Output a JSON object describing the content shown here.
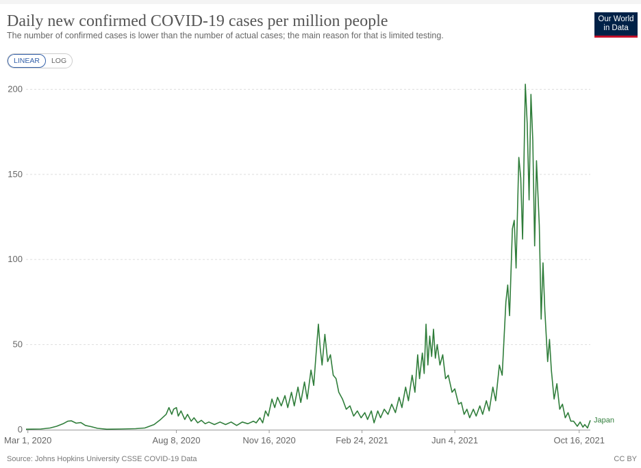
{
  "header": {
    "title": "Daily new confirmed COVID-19 cases per million people",
    "subtitle": "The number of confirmed cases is lower than the number of actual cases; the main reason for that is limited testing.",
    "logo_line1": "Our World",
    "logo_line2": "in Data"
  },
  "controls": {
    "linear_label": "LINEAR",
    "log_label": "LOG",
    "selected": "LINEAR"
  },
  "footer": {
    "source": "Source: Johns Hopkins University CSSE COVID-19 Data",
    "license": "CC BY"
  },
  "colors": {
    "series": "#2f7d3a",
    "grid": "#dddddd",
    "logo_bg": "#002147",
    "logo_accent": "#c4102a",
    "toggle_active": "#3360a9"
  },
  "chart_data": {
    "type": "line",
    "title": "Daily new confirmed COVID-19 cases per million people",
    "xlabel": "",
    "ylabel": "",
    "ylim": [
      0,
      205
    ],
    "yticks": [
      0,
      50,
      100,
      150,
      200
    ],
    "xlim": [
      "2020-02-28",
      "2021-10-28"
    ],
    "xticks": [
      {
        "date": "2020-03-01",
        "label": "Mar 1, 2020"
      },
      {
        "date": "2020-08-08",
        "label": "Aug 8, 2020"
      },
      {
        "date": "2020-11-16",
        "label": "Nov 16, 2020"
      },
      {
        "date": "2021-02-24",
        "label": "Feb 24, 2021"
      },
      {
        "date": "2021-06-04",
        "label": "Jun 4, 2021"
      },
      {
        "date": "2021-10-16",
        "label": "Oct 16, 2021"
      }
    ],
    "grid": true,
    "legend": "end-of-line label",
    "series": [
      {
        "name": "Japan",
        "points": [
          [
            "2020-02-28",
            0.3
          ],
          [
            "2020-03-15",
            0.4
          ],
          [
            "2020-03-25",
            1.0
          ],
          [
            "2020-04-01",
            2.0
          ],
          [
            "2020-04-08",
            3.5
          ],
          [
            "2020-04-13",
            5.0
          ],
          [
            "2020-04-17",
            5.2
          ],
          [
            "2020-04-22",
            3.8
          ],
          [
            "2020-04-27",
            4.2
          ],
          [
            "2020-05-02",
            2.5
          ],
          [
            "2020-05-08",
            1.8
          ],
          [
            "2020-05-15",
            0.8
          ],
          [
            "2020-05-25",
            0.3
          ],
          [
            "2020-06-10",
            0.4
          ],
          [
            "2020-06-25",
            0.6
          ],
          [
            "2020-07-05",
            1.0
          ],
          [
            "2020-07-15",
            3.0
          ],
          [
            "2020-07-22",
            6.0
          ],
          [
            "2020-07-28",
            9.0
          ],
          [
            "2020-07-31",
            13.0
          ],
          [
            "2020-08-03",
            9.0
          ],
          [
            "2020-08-05",
            12.0
          ],
          [
            "2020-08-08",
            13.0
          ],
          [
            "2020-08-10",
            8.0
          ],
          [
            "2020-08-13",
            11.0
          ],
          [
            "2020-08-17",
            6.0
          ],
          [
            "2020-08-20",
            9.0
          ],
          [
            "2020-08-24",
            5.0
          ],
          [
            "2020-08-27",
            7.0
          ],
          [
            "2020-08-31",
            4.0
          ],
          [
            "2020-09-04",
            5.5
          ],
          [
            "2020-09-08",
            3.5
          ],
          [
            "2020-09-12",
            4.5
          ],
          [
            "2020-09-18",
            3.0
          ],
          [
            "2020-09-24",
            4.5
          ],
          [
            "2020-09-30",
            3.0
          ],
          [
            "2020-10-06",
            4.5
          ],
          [
            "2020-10-12",
            2.5
          ],
          [
            "2020-10-18",
            4.5
          ],
          [
            "2020-10-24",
            3.5
          ],
          [
            "2020-10-30",
            5.0
          ],
          [
            "2020-11-02",
            4.0
          ],
          [
            "2020-11-06",
            7.0
          ],
          [
            "2020-11-09",
            4.0
          ],
          [
            "2020-11-12",
            11.0
          ],
          [
            "2020-11-15",
            8.0
          ],
          [
            "2020-11-19",
            18.0
          ],
          [
            "2020-11-22",
            13.0
          ],
          [
            "2020-11-25",
            19.0
          ],
          [
            "2020-11-29",
            14.0
          ],
          [
            "2020-12-03",
            20.0
          ],
          [
            "2020-12-06",
            13.0
          ],
          [
            "2020-12-10",
            22.0
          ],
          [
            "2020-12-13",
            14.0
          ],
          [
            "2020-12-17",
            25.0
          ],
          [
            "2020-12-20",
            16.0
          ],
          [
            "2020-12-24",
            28.0
          ],
          [
            "2020-12-27",
            18.0
          ],
          [
            "2020-12-31",
            35.0
          ],
          [
            "2021-01-03",
            26.0
          ],
          [
            "2021-01-06",
            48.0
          ],
          [
            "2021-01-08",
            62.0
          ],
          [
            "2021-01-10",
            48.0
          ],
          [
            "2021-01-12",
            38.0
          ],
          [
            "2021-01-15",
            56.0
          ],
          [
            "2021-01-18",
            40.0
          ],
          [
            "2021-01-21",
            44.0
          ],
          [
            "2021-01-24",
            32.0
          ],
          [
            "2021-01-27",
            30.0
          ],
          [
            "2021-01-30",
            22.0
          ],
          [
            "2021-02-03",
            18.0
          ],
          [
            "2021-02-07",
            12.0
          ],
          [
            "2021-02-11",
            14.0
          ],
          [
            "2021-02-15",
            8.0
          ],
          [
            "2021-02-19",
            11.0
          ],
          [
            "2021-02-23",
            7.0
          ],
          [
            "2021-02-27",
            10.0
          ],
          [
            "2021-03-02",
            6.0
          ],
          [
            "2021-03-06",
            11.0
          ],
          [
            "2021-03-09",
            4.0
          ],
          [
            "2021-03-13",
            11.0
          ],
          [
            "2021-03-16",
            7.0
          ],
          [
            "2021-03-20",
            12.0
          ],
          [
            "2021-03-24",
            9.0
          ],
          [
            "2021-03-28",
            15.0
          ],
          [
            "2021-04-01",
            10.0
          ],
          [
            "2021-04-05",
            19.0
          ],
          [
            "2021-04-08",
            13.0
          ],
          [
            "2021-04-12",
            25.0
          ],
          [
            "2021-04-15",
            17.0
          ],
          [
            "2021-04-19",
            32.0
          ],
          [
            "2021-04-22",
            22.0
          ],
          [
            "2021-04-25",
            44.0
          ],
          [
            "2021-04-27",
            30.0
          ],
          [
            "2021-04-30",
            45.0
          ],
          [
            "2021-05-02",
            33.0
          ],
          [
            "2021-05-04",
            62.0
          ],
          [
            "2021-05-06",
            38.0
          ],
          [
            "2021-05-08",
            55.0
          ],
          [
            "2021-05-10",
            43.0
          ],
          [
            "2021-05-12",
            59.0
          ],
          [
            "2021-05-14",
            42.0
          ],
          [
            "2021-05-16",
            50.0
          ],
          [
            "2021-05-19",
            38.0
          ],
          [
            "2021-05-22",
            44.0
          ],
          [
            "2021-05-25",
            30.0
          ],
          [
            "2021-05-28",
            32.0
          ],
          [
            "2021-06-01",
            22.0
          ],
          [
            "2021-06-04",
            24.0
          ],
          [
            "2021-06-08",
            15.0
          ],
          [
            "2021-06-11",
            16.0
          ],
          [
            "2021-06-14",
            9.0
          ],
          [
            "2021-06-17",
            12.0
          ],
          [
            "2021-06-20",
            7.0
          ],
          [
            "2021-06-24",
            12.0
          ],
          [
            "2021-06-27",
            8.0
          ],
          [
            "2021-07-01",
            14.0
          ],
          [
            "2021-07-04",
            9.0
          ],
          [
            "2021-07-08",
            17.0
          ],
          [
            "2021-07-11",
            11.0
          ],
          [
            "2021-07-15",
            25.0
          ],
          [
            "2021-07-18",
            17.0
          ],
          [
            "2021-07-22",
            38.0
          ],
          [
            "2021-07-25",
            32.0
          ],
          [
            "2021-07-29",
            75.0
          ],
          [
            "2021-07-31",
            85.0
          ],
          [
            "2021-08-02",
            67.0
          ],
          [
            "2021-08-05",
            118.0
          ],
          [
            "2021-08-07",
            123.0
          ],
          [
            "2021-08-09",
            95.0
          ],
          [
            "2021-08-12",
            160.0
          ],
          [
            "2021-08-14",
            148.0
          ],
          [
            "2021-08-16",
            112.0
          ],
          [
            "2021-08-19",
            203.0
          ],
          [
            "2021-08-21",
            180.0
          ],
          [
            "2021-08-23",
            135.0
          ],
          [
            "2021-08-25",
            197.0
          ],
          [
            "2021-08-27",
            170.0
          ],
          [
            "2021-08-29",
            108.0
          ],
          [
            "2021-08-31",
            158.0
          ],
          [
            "2021-09-03",
            120.0
          ],
          [
            "2021-09-05",
            65.0
          ],
          [
            "2021-09-07",
            98.0
          ],
          [
            "2021-09-09",
            70.0
          ],
          [
            "2021-09-12",
            40.0
          ],
          [
            "2021-09-14",
            53.0
          ],
          [
            "2021-09-16",
            35.0
          ],
          [
            "2021-09-19",
            18.0
          ],
          [
            "2021-09-22",
            27.0
          ],
          [
            "2021-09-25",
            12.0
          ],
          [
            "2021-09-28",
            15.0
          ],
          [
            "2021-10-01",
            7.0
          ],
          [
            "2021-10-04",
            10.0
          ],
          [
            "2021-10-07",
            5.0
          ],
          [
            "2021-10-10",
            5.0
          ],
          [
            "2021-10-14",
            2.0
          ],
          [
            "2021-10-17",
            4.5
          ],
          [
            "2021-10-20",
            1.5
          ],
          [
            "2021-10-22",
            3.0
          ],
          [
            "2021-10-25",
            1.0
          ],
          [
            "2021-10-28",
            5.5
          ]
        ]
      }
    ]
  }
}
